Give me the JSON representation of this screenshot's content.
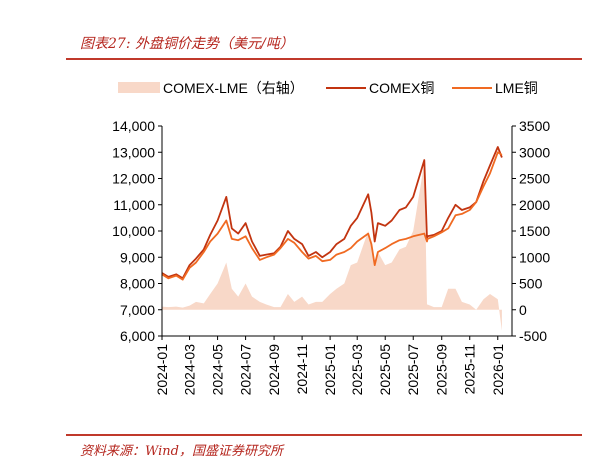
{
  "figure": {
    "title": "图表27:  外盘铜价走势（美元/吨）",
    "source": "资料来源：Wind，国盛证券研究所"
  },
  "colors": {
    "comex": "#c23410",
    "lme": "#f06a22",
    "spread": "#f8d8c8",
    "accent": "#c0392b"
  },
  "chart_data": {
    "type": "line",
    "legend": [
      "COMEX-LME（右轴）",
      "COMEX铜",
      "LME铜"
    ],
    "legend_position": "top",
    "y_left": {
      "ticks": [
        "14,000",
        "13,000",
        "12,000",
        "11,000",
        "10,000",
        "9,000",
        "8,000",
        "7,000",
        "6,000"
      ],
      "range": [
        6000,
        14000
      ]
    },
    "y_right": {
      "ticks": [
        "3500",
        "3000",
        "2500",
        "2000",
        "1500",
        "1000",
        "500",
        "0",
        "-500"
      ],
      "range": [
        -500,
        3500
      ]
    },
    "x_ticks": [
      "2024-01",
      "2024-03",
      "2024-05",
      "2024-07",
      "2024-09",
      "2024-11",
      "2025-01",
      "2025-03",
      "2025-05",
      "2025-07",
      "2025-09",
      "2025-11",
      "2026-01"
    ],
    "grid": false,
    "series": [
      {
        "name": "COMEX铜",
        "axis": "left",
        "type": "line",
        "values": [
          [
            "2024-01",
            8400
          ],
          [
            "2024-01-15",
            8250
          ],
          [
            "2024-02",
            8350
          ],
          [
            "2024-02-15",
            8200
          ],
          [
            "2024-03",
            8700
          ],
          [
            "2024-03-15",
            8950
          ],
          [
            "2024-04",
            9300
          ],
          [
            "2024-04-15",
            9850
          ],
          [
            "2024-05",
            10400
          ],
          [
            "2024-05-20",
            11300
          ],
          [
            "2024-06",
            10100
          ],
          [
            "2024-06-15",
            9900
          ],
          [
            "2024-07",
            10300
          ],
          [
            "2024-07-15",
            9600
          ],
          [
            "2024-08",
            9050
          ],
          [
            "2024-08-15",
            9100
          ],
          [
            "2024-09",
            9150
          ],
          [
            "2024-09-15",
            9400
          ],
          [
            "2024-10",
            10000
          ],
          [
            "2024-10-15",
            9700
          ],
          [
            "2024-11",
            9500
          ],
          [
            "2024-11-15",
            9050
          ],
          [
            "2024-12",
            9200
          ],
          [
            "2024-12-15",
            9000
          ],
          [
            "2025-01",
            9200
          ],
          [
            "2025-01-15",
            9500
          ],
          [
            "2025-02",
            9700
          ],
          [
            "2025-02-15",
            10200
          ],
          [
            "2025-03",
            10500
          ],
          [
            "2025-03-25",
            11400
          ],
          [
            "2025-04",
            10700
          ],
          [
            "2025-04-08",
            9600
          ],
          [
            "2025-04-15",
            10300
          ],
          [
            "2025-05",
            10200
          ],
          [
            "2025-05-15",
            10400
          ],
          [
            "2025-06",
            10800
          ],
          [
            "2025-06-15",
            10900
          ],
          [
            "2025-07",
            11300
          ],
          [
            "2025-07-25",
            12700
          ],
          [
            "2025-07-31",
            9700
          ],
          [
            "2025-08",
            9800
          ],
          [
            "2025-08-15",
            9850
          ],
          [
            "2025-09",
            10000
          ],
          [
            "2025-09-15",
            10500
          ],
          [
            "2025-10",
            11000
          ],
          [
            "2025-10-15",
            10800
          ],
          [
            "2025-11",
            10900
          ],
          [
            "2025-11-15",
            11100
          ],
          [
            "2025-12",
            11900
          ],
          [
            "2025-12-15",
            12500
          ],
          [
            "2026-01",
            13200
          ],
          [
            "2026-01-10",
            12800
          ]
        ]
      },
      {
        "name": "LME铜",
        "axis": "left",
        "type": "line",
        "values": [
          [
            "2024-01",
            8350
          ],
          [
            "2024-01-15",
            8200
          ],
          [
            "2024-02",
            8300
          ],
          [
            "2024-02-15",
            8150
          ],
          [
            "2024-03",
            8600
          ],
          [
            "2024-03-15",
            8800
          ],
          [
            "2024-04",
            9200
          ],
          [
            "2024-04-15",
            9600
          ],
          [
            "2024-05",
            9900
          ],
          [
            "2024-05-20",
            10400
          ],
          [
            "2024-06",
            9700
          ],
          [
            "2024-06-15",
            9650
          ],
          [
            "2024-07",
            9800
          ],
          [
            "2024-07-15",
            9350
          ],
          [
            "2024-08",
            8900
          ],
          [
            "2024-08-15",
            9000
          ],
          [
            "2024-09",
            9100
          ],
          [
            "2024-09-15",
            9350
          ],
          [
            "2024-10",
            9700
          ],
          [
            "2024-10-15",
            9550
          ],
          [
            "2024-11",
            9200
          ],
          [
            "2024-11-15",
            8950
          ],
          [
            "2024-12",
            9050
          ],
          [
            "2024-12-15",
            8850
          ],
          [
            "2025-01",
            8900
          ],
          [
            "2025-01-15",
            9100
          ],
          [
            "2025-02",
            9200
          ],
          [
            "2025-02-15",
            9350
          ],
          [
            "2025-03",
            9600
          ],
          [
            "2025-03-25",
            9900
          ],
          [
            "2025-04",
            9500
          ],
          [
            "2025-04-08",
            8700
          ],
          [
            "2025-04-15",
            9200
          ],
          [
            "2025-05",
            9350
          ],
          [
            "2025-05-15",
            9500
          ],
          [
            "2025-06",
            9650
          ],
          [
            "2025-06-15",
            9700
          ],
          [
            "2025-07",
            9800
          ],
          [
            "2025-07-25",
            9900
          ],
          [
            "2025-07-31",
            9600
          ],
          [
            "2025-08",
            9700
          ],
          [
            "2025-08-15",
            9800
          ],
          [
            "2025-09",
            9950
          ],
          [
            "2025-09-15",
            10100
          ],
          [
            "2025-10",
            10600
          ],
          [
            "2025-10-15",
            10650
          ],
          [
            "2025-11",
            10800
          ],
          [
            "2025-11-15",
            11100
          ],
          [
            "2025-12",
            11700
          ],
          [
            "2025-12-15",
            12200
          ],
          [
            "2026-01",
            13000
          ],
          [
            "2026-01-10",
            12900
          ]
        ]
      },
      {
        "name": "COMEX-LME（右轴）",
        "axis": "right",
        "type": "area",
        "values": [
          [
            "2024-01",
            60
          ],
          [
            "2024-01-15",
            50
          ],
          [
            "2024-02",
            60
          ],
          [
            "2024-02-15",
            40
          ],
          [
            "2024-03",
            80
          ],
          [
            "2024-03-15",
            150
          ],
          [
            "2024-04",
            120
          ],
          [
            "2024-04-15",
            300
          ],
          [
            "2024-05",
            500
          ],
          [
            "2024-05-20",
            900
          ],
          [
            "2024-06",
            400
          ],
          [
            "2024-06-15",
            250
          ],
          [
            "2024-07",
            500
          ],
          [
            "2024-07-15",
            250
          ],
          [
            "2024-08",
            150
          ],
          [
            "2024-08-15",
            100
          ],
          [
            "2024-09",
            50
          ],
          [
            "2024-09-15",
            50
          ],
          [
            "2024-10",
            300
          ],
          [
            "2024-10-15",
            150
          ],
          [
            "2024-11",
            250
          ],
          [
            "2024-11-15",
            100
          ],
          [
            "2024-12",
            150
          ],
          [
            "2024-12-15",
            150
          ],
          [
            "2025-01",
            300
          ],
          [
            "2025-01-15",
            400
          ],
          [
            "2025-02",
            500
          ],
          [
            "2025-02-15",
            850
          ],
          [
            "2025-03",
            900
          ],
          [
            "2025-03-25",
            1500
          ],
          [
            "2025-04",
            1200
          ],
          [
            "2025-04-08",
            900
          ],
          [
            "2025-04-15",
            1100
          ],
          [
            "2025-05",
            850
          ],
          [
            "2025-05-15",
            900
          ],
          [
            "2025-06",
            1150
          ],
          [
            "2025-06-15",
            1200
          ],
          [
            "2025-07",
            1500
          ],
          [
            "2025-07-25",
            2800
          ],
          [
            "2025-07-31",
            100
          ],
          [
            "2025-08",
            100
          ],
          [
            "2025-08-15",
            50
          ],
          [
            "2025-09",
            50
          ],
          [
            "2025-09-15",
            400
          ],
          [
            "2025-10",
            400
          ],
          [
            "2025-10-15",
            150
          ],
          [
            "2025-11",
            100
          ],
          [
            "2025-11-15",
            0
          ],
          [
            "2025-12",
            200
          ],
          [
            "2025-12-15",
            300
          ],
          [
            "2026-01",
            200
          ],
          [
            "2026-01-10",
            -400
          ]
        ]
      }
    ]
  }
}
